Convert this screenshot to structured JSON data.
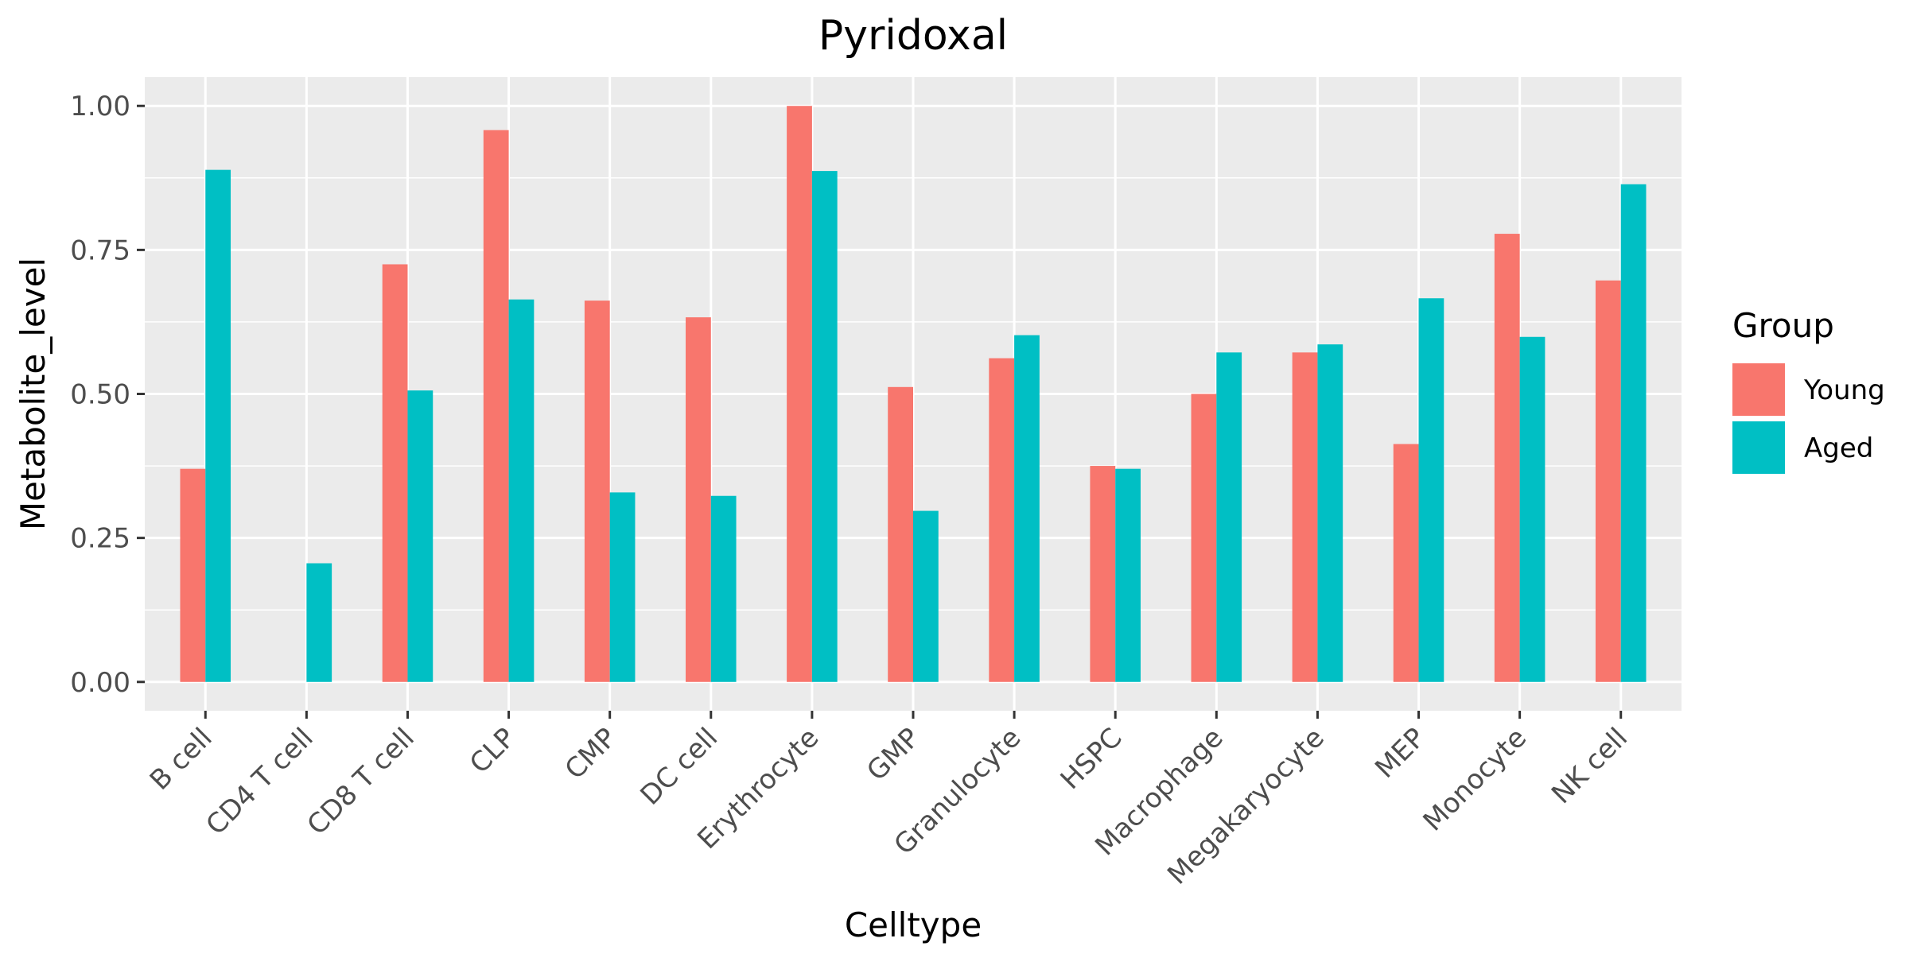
{
  "chart_data": {
    "type": "bar",
    "title": "Pyridoxal",
    "xlabel": "Celltype",
    "ylabel": "Metabolite_level",
    "categories": [
      "B cell",
      "CD4 T cell",
      "CD8 T cell",
      "CLP",
      "CMP",
      "DC cell",
      "Erythrocyte",
      "GMP",
      "Granulocyte",
      "HSPC",
      "Macrophage",
      "Megakaryocyte",
      "MEP",
      "Monocyte",
      "NK cell"
    ],
    "series": [
      {
        "name": "Young",
        "color": "#F8766D",
        "values": [
          0.37,
          null,
          0.725,
          0.958,
          0.662,
          0.633,
          1.0,
          0.512,
          0.562,
          0.375,
          0.5,
          0.572,
          0.413,
          0.778,
          0.697
        ]
      },
      {
        "name": "Aged",
        "color": "#00BFC4",
        "values": [
          0.889,
          0.206,
          0.506,
          0.664,
          0.329,
          0.323,
          0.887,
          0.297,
          0.602,
          0.37,
          0.572,
          0.586,
          0.666,
          0.599,
          0.864
        ]
      }
    ],
    "ylim": [
      -0.05,
      1.05
    ],
    "yticks": [
      0,
      0.25,
      0.5,
      0.75,
      1.0
    ],
    "ytick_labels": [
      "0.00",
      "0.25",
      "0.50",
      "0.75",
      "1.00"
    ],
    "grid": true,
    "legend": {
      "title": "Group",
      "position": "right"
    }
  }
}
